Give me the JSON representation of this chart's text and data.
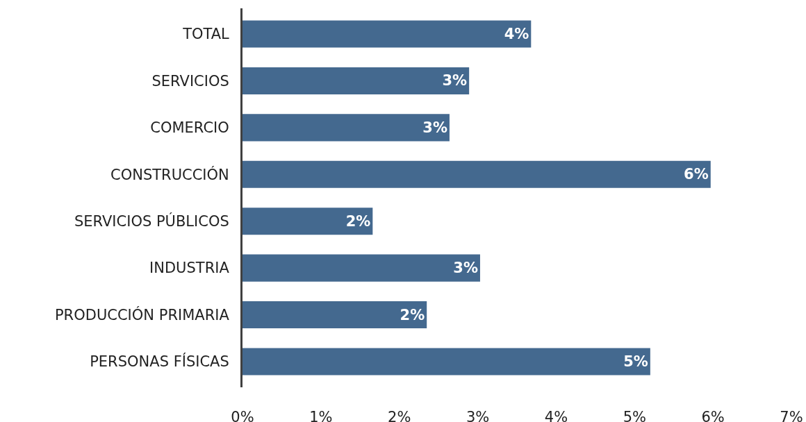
{
  "chart_data": {
    "type": "bar",
    "orientation": "horizontal",
    "categories": [
      "TOTAL",
      "SERVICIOS",
      "COMERCIO",
      "CONSTRUCCIÓN",
      "SERVICIOS PÚBLICOS",
      "INDUSTRIA",
      "PRODUCCIÓN PRIMARIA",
      "PERSONAS FÍSICAS"
    ],
    "values": [
      3.68,
      2.89,
      2.64,
      5.97,
      1.66,
      3.03,
      2.35,
      5.2
    ],
    "value_labels": [
      "4%",
      "3%",
      "3%",
      "6%",
      "2%",
      "3%",
      "2%",
      "5%"
    ],
    "color": "#44698f",
    "xlim": [
      0,
      7
    ],
    "xticks": [
      {
        "value": 0,
        "label": "0%"
      },
      {
        "value": 1,
        "label": "1%"
      },
      {
        "value": 2,
        "label": "2%"
      },
      {
        "value": 3,
        "label": "3%"
      },
      {
        "value": 4,
        "label": "4%"
      },
      {
        "value": 5,
        "label": "5%"
      },
      {
        "value": 6,
        "label": "6%"
      },
      {
        "value": 7,
        "label": "7%"
      }
    ],
    "grid": false,
    "legend": false
  }
}
